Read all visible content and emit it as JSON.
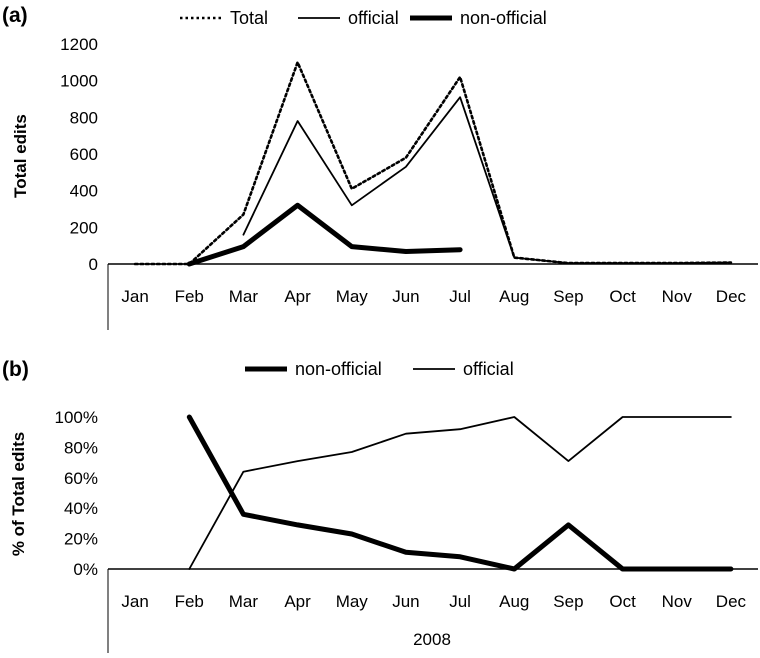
{
  "chart_data": [
    {
      "type": "line",
      "panel_label": "(a)",
      "categories": [
        "Jan",
        "Feb",
        "Mar",
        "Apr",
        "May",
        "Jun",
        "Jul",
        "Aug",
        "Sep",
        "Oct",
        "Nov",
        "Dec"
      ],
      "ylabel": "Total edits",
      "xlabel": "",
      "ylim": [
        0,
        1200
      ],
      "yticks": [
        "0",
        "200",
        "400",
        "600",
        "800",
        "1000",
        "1200"
      ],
      "ytick_values": [
        0,
        200,
        400,
        600,
        800,
        1000,
        1200
      ],
      "legend_position": "top",
      "series": [
        {
          "name": "Total",
          "style": "dotted",
          "values": [
            0,
            0,
            270,
            1100,
            410,
            580,
            1020,
            35,
            5,
            5,
            5,
            8
          ]
        },
        {
          "name": "official",
          "style": "thin",
          "values": [
            null,
            null,
            160,
            780,
            320,
            530,
            910,
            35,
            5,
            5,
            5,
            8
          ]
        },
        {
          "name": "non-official",
          "style": "thick",
          "values": [
            null,
            0,
            95,
            320,
            95,
            68,
            78,
            null,
            null,
            null,
            null,
            null
          ]
        }
      ]
    },
    {
      "type": "line",
      "panel_label": "(b)",
      "categories": [
        "Jan",
        "Feb",
        "Mar",
        "Apr",
        "May",
        "Jun",
        "Jul",
        "Aug",
        "Sep",
        "Oct",
        "Nov",
        "Dec"
      ],
      "ylabel": "% of Total edits",
      "xlabel": "2008",
      "ylim": [
        0,
        100
      ],
      "yticks": [
        "0%",
        "20%",
        "40%",
        "60%",
        "80%",
        "100%"
      ],
      "ytick_values": [
        0,
        20,
        40,
        60,
        80,
        100
      ],
      "legend_position": "top",
      "series": [
        {
          "name": "non-official",
          "style": "thick",
          "values": [
            null,
            100,
            36,
            29,
            23,
            11,
            8,
            0,
            29,
            0,
            0,
            0
          ]
        },
        {
          "name": "official",
          "style": "thin",
          "values": [
            null,
            0,
            64,
            71,
            77,
            89,
            92,
            100,
            71,
            100,
            100,
            100
          ]
        }
      ]
    }
  ]
}
